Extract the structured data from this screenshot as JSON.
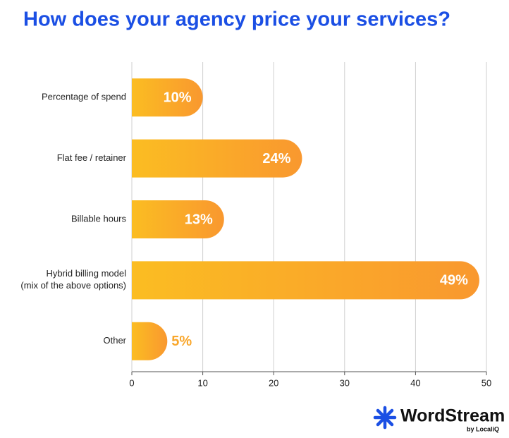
{
  "chart_data": {
    "type": "bar",
    "orientation": "horizontal",
    "title": "How does your agency price your services?",
    "categories": [
      "Percentage of spend",
      "Flat fee / retainer",
      "Billable hours",
      "Hybrid billing model\n(mix of the above options)",
      "Other"
    ],
    "values": [
      10,
      24,
      13,
      49,
      5
    ],
    "value_labels": [
      "10%",
      "24%",
      "13%",
      "49%",
      "5%"
    ],
    "color": "#f9a72c",
    "xlim": [
      0,
      50
    ],
    "xticks": [
      0,
      10,
      20,
      30,
      40,
      50
    ],
    "grid": true
  },
  "logo": {
    "name": "WordStream",
    "tagline": "by LocaliQ"
  }
}
